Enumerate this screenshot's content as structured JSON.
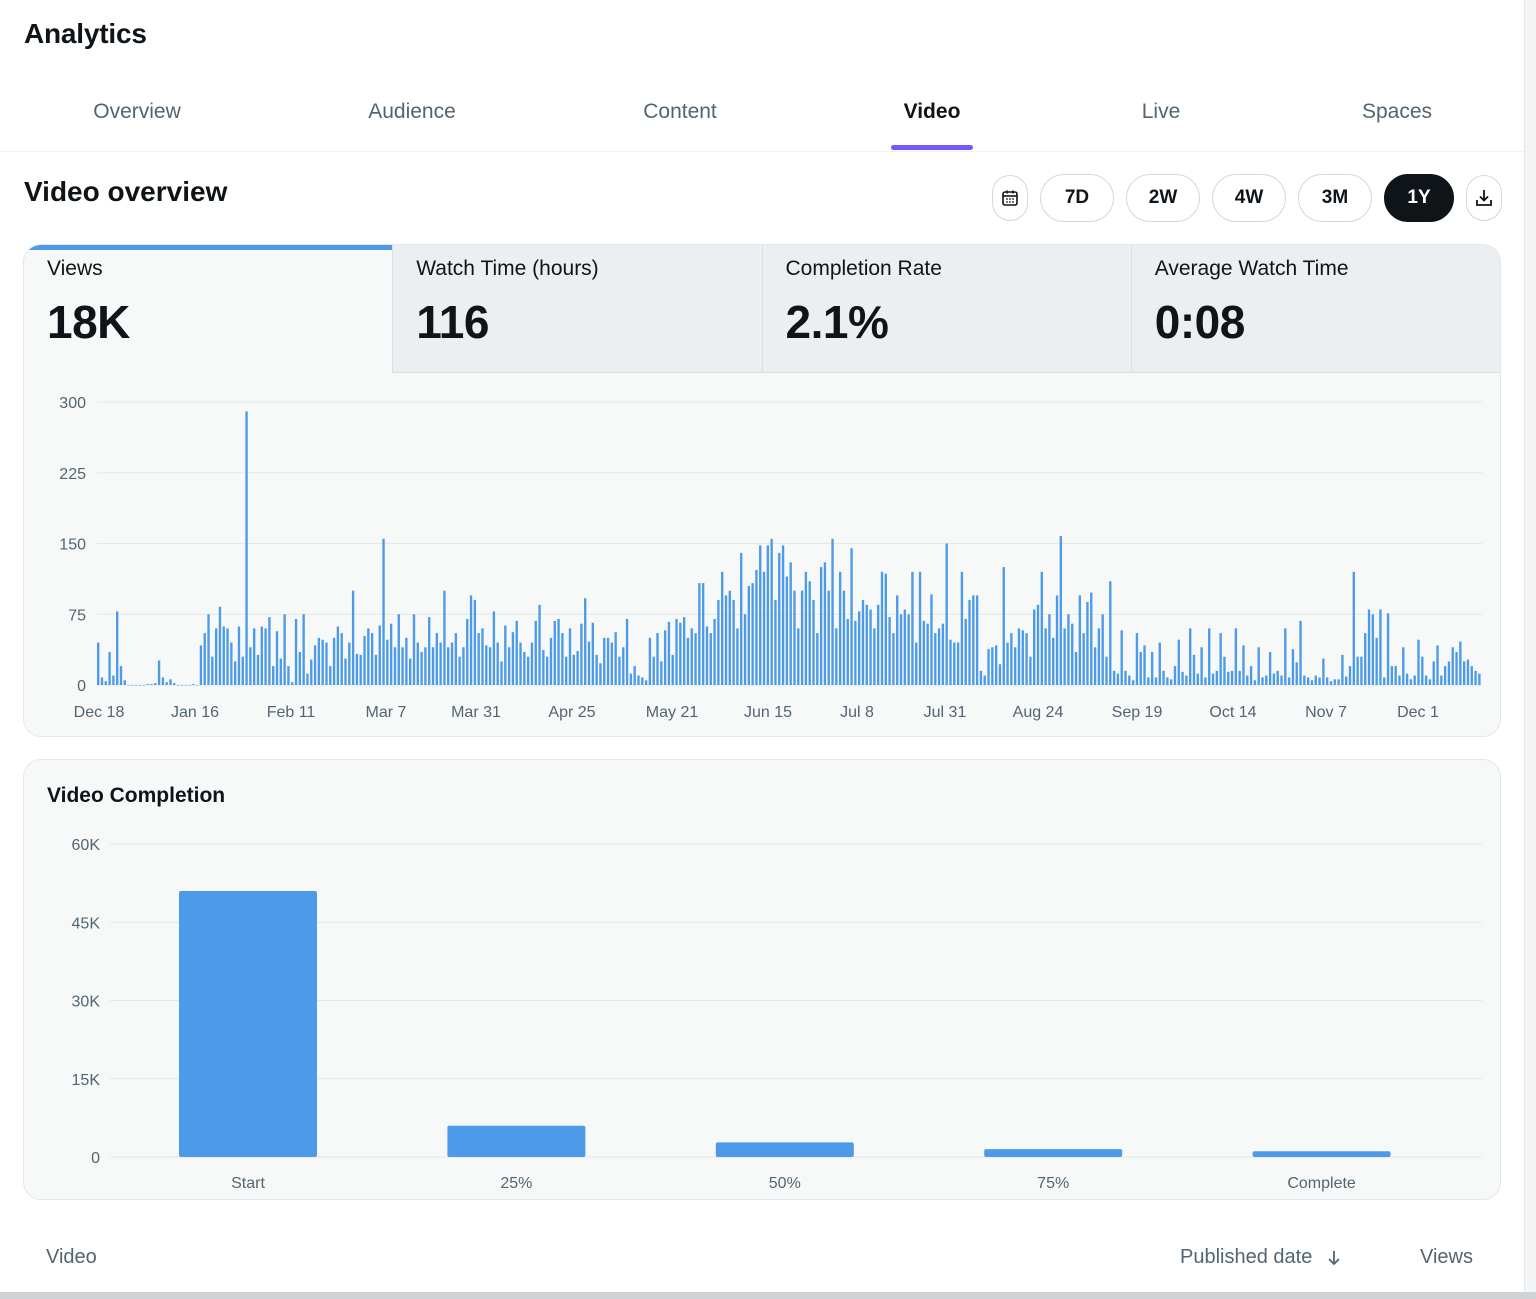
{
  "header": {
    "title": "Analytics"
  },
  "tabs": [
    {
      "label": "Overview",
      "active": false
    },
    {
      "label": "Audience",
      "active": false
    },
    {
      "label": "Content",
      "active": false
    },
    {
      "label": "Video",
      "active": true
    },
    {
      "label": "Live",
      "active": false
    },
    {
      "label": "Spaces",
      "active": false
    }
  ],
  "section": {
    "title": "Video overview"
  },
  "ranges": {
    "calendar_icon": "calendar-icon",
    "items": [
      "7D",
      "2W",
      "4W",
      "3M",
      "1Y"
    ],
    "selected": "1Y",
    "download_icon": "download-icon"
  },
  "metrics": [
    {
      "label": "Views",
      "value": "18K",
      "active": true
    },
    {
      "label": "Watch Time (hours)",
      "value": "116",
      "active": false
    },
    {
      "label": "Completion Rate",
      "value": "2.1%",
      "active": false
    },
    {
      "label": "Average Watch Time",
      "value": "0:08",
      "active": false
    }
  ],
  "colors": {
    "accent": "#7856ff",
    "bar": "#4c9ae8",
    "selected_pill": "#0f1419"
  },
  "chart_data": [
    {
      "type": "bar",
      "title": "",
      "series_name": "Views",
      "x_tick_labels": [
        "Dec 18",
        "Jan 16",
        "Feb 11",
        "Mar 7",
        "Mar 31",
        "Apr 25",
        "May 21",
        "Jun 15",
        "Jul 8",
        "Jul 31",
        "Aug 24",
        "Sep 19",
        "Oct 14",
        "Nov 7",
        "Dec 1"
      ],
      "yticks": [
        0,
        75,
        150,
        225,
        300
      ],
      "ylim": [
        0,
        300
      ],
      "grid": true,
      "values": [
        45,
        8,
        4,
        35,
        10,
        78,
        20,
        5,
        0,
        0,
        0,
        0,
        0,
        1,
        1,
        2,
        26,
        8,
        3,
        6,
        2,
        0,
        0,
        0,
        0,
        1,
        0,
        42,
        55,
        75,
        30,
        60,
        83,
        62,
        60,
        45,
        25,
        62,
        30,
        290,
        40,
        60,
        32,
        62,
        60,
        72,
        20,
        57,
        28,
        75,
        20,
        3,
        70,
        35,
        75,
        12,
        27,
        42,
        50,
        48,
        45,
        20,
        50,
        62,
        55,
        28,
        45,
        100,
        33,
        32,
        52,
        60,
        55,
        32,
        63,
        155,
        48,
        65,
        40,
        75,
        40,
        50,
        28,
        75,
        45,
        35,
        40,
        72,
        40,
        55,
        45,
        100,
        40,
        45,
        55,
        30,
        40,
        70,
        95,
        90,
        55,
        60,
        42,
        40,
        78,
        45,
        25,
        63,
        40,
        56,
        68,
        45,
        35,
        30,
        45,
        68,
        85,
        37,
        30,
        50,
        68,
        70,
        55,
        30,
        60,
        32,
        36,
        65,
        92,
        46,
        66,
        32,
        23,
        50,
        50,
        45,
        56,
        30,
        40,
        70,
        12,
        20,
        10,
        8,
        5,
        50,
        30,
        55,
        25,
        58,
        67,
        32,
        70,
        66,
        72,
        50,
        60,
        55,
        108,
        108,
        62,
        55,
        70,
        90,
        120,
        95,
        100,
        90,
        60,
        140,
        75,
        105,
        108,
        122,
        148,
        120,
        148,
        155,
        90,
        140,
        148,
        115,
        130,
        100,
        60,
        100,
        120,
        110,
        90,
        55,
        125,
        130,
        100,
        155,
        60,
        120,
        100,
        70,
        145,
        68,
        78,
        90,
        85,
        80,
        60,
        85,
        120,
        118,
        72,
        55,
        95,
        75,
        80,
        75,
        120,
        45,
        120,
        68,
        65,
        96,
        55,
        60,
        65,
        150,
        48,
        45,
        45,
        120,
        70,
        90,
        95,
        95,
        15,
        10,
        38,
        40,
        42,
        22,
        125,
        45,
        55,
        40,
        60,
        58,
        55,
        30,
        80,
        85,
        120,
        60,
        75,
        50,
        95,
        158,
        60,
        75,
        65,
        35,
        95,
        55,
        88,
        98,
        40,
        60,
        75,
        30,
        110,
        15,
        12,
        58,
        15,
        10,
        5,
        55,
        35,
        42,
        8,
        35,
        8,
        45,
        15,
        8,
        6,
        20,
        48,
        14,
        10,
        60,
        32,
        12,
        40,
        8,
        60,
        12,
        15,
        55,
        30,
        14,
        15,
        60,
        15,
        42,
        10,
        20,
        5,
        40,
        8,
        10,
        35,
        12,
        15,
        10,
        60,
        8,
        38,
        24,
        68,
        10,
        8,
        5,
        10,
        8,
        28,
        8,
        4,
        6,
        6,
        32,
        9,
        20,
        120,
        30,
        30,
        55,
        80,
        75,
        50,
        80,
        8,
        76,
        20,
        20,
        10,
        40,
        12,
        6,
        10,
        48,
        30,
        10,
        6,
        25,
        42,
        10,
        20,
        25,
        40,
        35,
        46,
        25,
        27,
        20,
        15,
        12
      ],
      "start_date": "Dec 18"
    },
    {
      "type": "bar",
      "title": "Video Completion",
      "categories": [
        "Start",
        "25%",
        "50%",
        "75%",
        "Complete"
      ],
      "values": [
        51000,
        6000,
        2800,
        1500,
        1100
      ],
      "yticks": [
        "0",
        "15K",
        "30K",
        "45K",
        "60K"
      ],
      "ylim": [
        0,
        60000
      ],
      "grid": true
    }
  ],
  "table": {
    "columns": {
      "video": "Video",
      "published": "Published date",
      "views": "Views"
    },
    "sort_icon": "arrow-down-icon"
  }
}
